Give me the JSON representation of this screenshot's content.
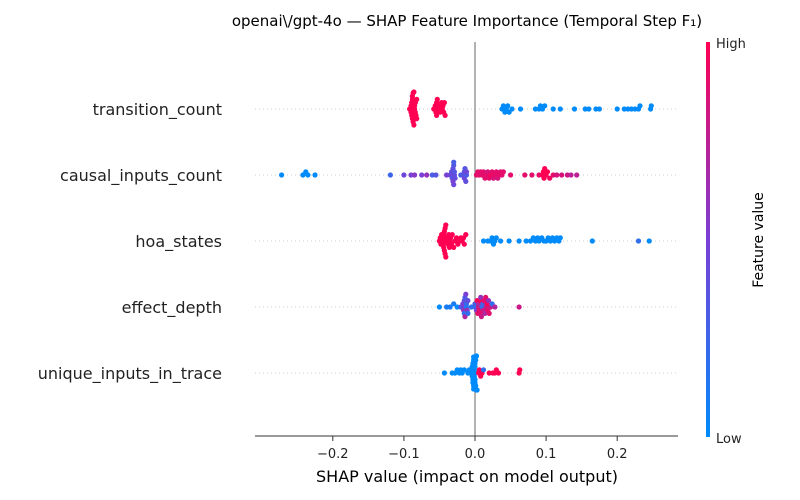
{
  "chart_data": {
    "type": "scatter",
    "subtype": "shap_beeswarm",
    "title": "openai\\/gpt-4o — SHAP Feature Importance (Temporal Step F₁)",
    "xlabel": "SHAP value (impact on model output)",
    "xlim": [
      -0.295,
      0.27
    ],
    "xticks": [
      -0.2,
      -0.1,
      0.0,
      0.1,
      0.2
    ],
    "xtick_labels": [
      "−0.2",
      "−0.1",
      "0.0",
      "0.1",
      "0.2"
    ],
    "colorbar": {
      "title": "Feature value",
      "high_label": "High",
      "low_label": "Low",
      "low_color": "#008bfb",
      "high_color": "#ff0052"
    },
    "features": [
      {
        "name": "transition_count",
        "points": [
          [
            -0.092,
            1
          ],
          [
            -0.091,
            1
          ],
          [
            -0.09,
            1
          ],
          [
            -0.09,
            1
          ],
          [
            -0.089,
            1
          ],
          [
            -0.089,
            1
          ],
          [
            -0.088,
            1
          ],
          [
            -0.088,
            1
          ],
          [
            -0.088,
            1
          ],
          [
            -0.087,
            1
          ],
          [
            -0.087,
            1
          ],
          [
            -0.086,
            1
          ],
          [
            -0.086,
            1
          ],
          [
            -0.085,
            1
          ],
          [
            -0.085,
            1
          ],
          [
            -0.084,
            1
          ],
          [
            -0.084,
            1
          ],
          [
            -0.083,
            1
          ],
          [
            -0.082,
            1
          ],
          [
            -0.082,
            1
          ],
          [
            -0.058,
            1
          ],
          [
            -0.057,
            1
          ],
          [
            -0.056,
            1
          ],
          [
            -0.055,
            1
          ],
          [
            -0.054,
            1
          ],
          [
            -0.054,
            1
          ],
          [
            -0.053,
            1
          ],
          [
            -0.052,
            1
          ],
          [
            -0.051,
            1
          ],
          [
            -0.049,
            1
          ],
          [
            -0.047,
            1
          ],
          [
            -0.046,
            1
          ],
          [
            -0.045,
            1
          ],
          [
            -0.044,
            1
          ],
          [
            -0.043,
            1
          ],
          [
            -0.042,
            1
          ],
          [
            0.038,
            0
          ],
          [
            0.04,
            0
          ],
          [
            0.042,
            0
          ],
          [
            0.044,
            0
          ],
          [
            0.046,
            0
          ],
          [
            0.048,
            0
          ],
          [
            0.052,
            0
          ],
          [
            0.064,
            0
          ],
          [
            0.085,
            0
          ],
          [
            0.09,
            0
          ],
          [
            0.092,
            0
          ],
          [
            0.095,
            0
          ],
          [
            0.098,
            0
          ],
          [
            0.11,
            0
          ],
          [
            0.12,
            0
          ],
          [
            0.14,
            0
          ],
          [
            0.155,
            0
          ],
          [
            0.16,
            0
          ],
          [
            0.17,
            0
          ],
          [
            0.175,
            0
          ],
          [
            0.2,
            0
          ],
          [
            0.21,
            0
          ],
          [
            0.215,
            0
          ],
          [
            0.22,
            0
          ],
          [
            0.225,
            0
          ],
          [
            0.23,
            0
          ],
          [
            0.232,
            0
          ],
          [
            0.247,
            0
          ],
          [
            0.248,
            0
          ]
        ]
      },
      {
        "name": "causal_inputs_count",
        "points": [
          [
            -0.272,
            0
          ],
          [
            -0.242,
            0
          ],
          [
            -0.238,
            0
          ],
          [
            -0.235,
            0
          ],
          [
            -0.225,
            0
          ],
          [
            -0.119,
            0.25
          ],
          [
            -0.1,
            0.45
          ],
          [
            -0.09,
            0.5
          ],
          [
            -0.085,
            0.55
          ],
          [
            -0.075,
            0.5
          ],
          [
            -0.068,
            0.6
          ],
          [
            -0.06,
            0.3
          ],
          [
            -0.055,
            0.35
          ],
          [
            -0.04,
            0.5
          ],
          [
            -0.035,
            0.45
          ],
          [
            -0.033,
            0.4
          ],
          [
            -0.032,
            0.35
          ],
          [
            -0.031,
            0.4
          ],
          [
            -0.03,
            0.35
          ],
          [
            -0.03,
            0.45
          ],
          [
            -0.029,
            0.4
          ],
          [
            -0.029,
            0.35
          ],
          [
            -0.028,
            0.4
          ],
          [
            -0.03,
            0.3
          ],
          [
            -0.031,
            0.5
          ],
          [
            -0.02,
            0.3
          ],
          [
            -0.016,
            0.35
          ],
          [
            -0.015,
            0.4
          ],
          [
            -0.015,
            0.45
          ],
          [
            -0.014,
            0.35
          ],
          [
            -0.013,
            0.4
          ],
          [
            -0.012,
            0.3
          ],
          [
            -0.012,
            0.45
          ],
          [
            0.002,
            0.9
          ],
          [
            0.004,
            0.9
          ],
          [
            0.006,
            0.9
          ],
          [
            0.008,
            0.9
          ],
          [
            0.01,
            0.9
          ],
          [
            0.012,
            0.9
          ],
          [
            0.014,
            0.9
          ],
          [
            0.016,
            0.9
          ],
          [
            0.018,
            0.85
          ],
          [
            0.02,
            0.9
          ],
          [
            0.022,
            0.95
          ],
          [
            0.024,
            0.9
          ],
          [
            0.026,
            0.85
          ],
          [
            0.028,
            0.9
          ],
          [
            0.03,
            0.9
          ],
          [
            0.032,
            0.85
          ],
          [
            0.034,
            0.9
          ],
          [
            0.036,
            0.9
          ],
          [
            0.038,
            0.9
          ],
          [
            0.04,
            0.9
          ],
          [
            0.05,
            0.9
          ],
          [
            0.07,
            0.9
          ],
          [
            0.08,
            0.9
          ],
          [
            0.09,
            0.9
          ],
          [
            0.095,
            1
          ],
          [
            0.096,
            1
          ],
          [
            0.097,
            1
          ],
          [
            0.098,
            1
          ],
          [
            0.1,
            1
          ],
          [
            0.102,
            1
          ],
          [
            0.105,
            0.95
          ],
          [
            0.11,
            0.9
          ],
          [
            0.115,
            0.85
          ],
          [
            0.122,
            0.85
          ],
          [
            0.13,
            0.8
          ],
          [
            0.135,
            0.75
          ],
          [
            0.143,
            0.75
          ]
        ]
      },
      {
        "name": "hoa_states",
        "points": [
          [
            -0.05,
            1
          ],
          [
            -0.049,
            1
          ],
          [
            -0.048,
            1
          ],
          [
            -0.047,
            1
          ],
          [
            -0.046,
            1
          ],
          [
            -0.045,
            1
          ],
          [
            -0.045,
            1
          ],
          [
            -0.044,
            1
          ],
          [
            -0.044,
            1
          ],
          [
            -0.043,
            1
          ],
          [
            -0.043,
            1
          ],
          [
            -0.042,
            1
          ],
          [
            -0.042,
            1
          ],
          [
            -0.041,
            1
          ],
          [
            -0.041,
            1
          ],
          [
            -0.04,
            1
          ],
          [
            -0.039,
            1
          ],
          [
            -0.038,
            1
          ],
          [
            -0.037,
            1
          ],
          [
            -0.036,
            1
          ],
          [
            -0.035,
            1
          ],
          [
            -0.034,
            1
          ],
          [
            -0.033,
            1
          ],
          [
            -0.032,
            1
          ],
          [
            -0.03,
            1
          ],
          [
            -0.028,
            1
          ],
          [
            -0.026,
            1
          ],
          [
            -0.024,
            1
          ],
          [
            -0.022,
            1
          ],
          [
            -0.02,
            1
          ],
          [
            -0.018,
            1
          ],
          [
            -0.016,
            1
          ],
          [
            -0.015,
            1
          ],
          [
            -0.013,
            1
          ],
          [
            0.012,
            0
          ],
          [
            0.018,
            0
          ],
          [
            0.022,
            0
          ],
          [
            0.024,
            0
          ],
          [
            0.026,
            0
          ],
          [
            0.028,
            0
          ],
          [
            0.03,
            0
          ],
          [
            0.036,
            0
          ],
          [
            0.048,
            0
          ],
          [
            0.062,
            0
          ],
          [
            0.072,
            0
          ],
          [
            0.078,
            0
          ],
          [
            0.082,
            0
          ],
          [
            0.085,
            0
          ],
          [
            0.088,
            0
          ],
          [
            0.09,
            0
          ],
          [
            0.094,
            0
          ],
          [
            0.097,
            0
          ],
          [
            0.1,
            0
          ],
          [
            0.103,
            0
          ],
          [
            0.106,
            0
          ],
          [
            0.109,
            0
          ],
          [
            0.112,
            0
          ],
          [
            0.115,
            0
          ],
          [
            0.118,
            0
          ],
          [
            0.12,
            0
          ],
          [
            0.165,
            0
          ],
          [
            0.23,
            0.2
          ],
          [
            0.245,
            0
          ]
        ]
      },
      {
        "name": "effect_depth",
        "points": [
          [
            -0.05,
            0
          ],
          [
            -0.04,
            0.1
          ],
          [
            -0.035,
            0.1
          ],
          [
            -0.03,
            0.1
          ],
          [
            -0.025,
            0
          ],
          [
            -0.02,
            0.3
          ],
          [
            -0.018,
            0.4
          ],
          [
            -0.017,
            0.5
          ],
          [
            -0.016,
            0.6
          ],
          [
            -0.015,
            0.4
          ],
          [
            -0.015,
            0.2
          ],
          [
            -0.014,
            0.3
          ],
          [
            -0.014,
            0.7
          ],
          [
            -0.013,
            0.5
          ],
          [
            -0.012,
            0.1
          ],
          [
            -0.012,
            0.2
          ],
          [
            -0.011,
            0.6
          ],
          [
            -0.01,
            0.4
          ],
          [
            -0.01,
            0.2
          ],
          [
            -0.005,
            0.2
          ],
          [
            0,
            0.2
          ],
          [
            0,
            0.3
          ],
          [
            0.002,
            0.5
          ],
          [
            0.003,
            1
          ],
          [
            0.004,
            0.9
          ],
          [
            0.005,
            0.8
          ],
          [
            0.005,
            0.7
          ],
          [
            0.006,
            0.9
          ],
          [
            0.007,
            1
          ],
          [
            0.008,
            0.9
          ],
          [
            0.008,
            0.6
          ],
          [
            0.009,
            0.8
          ],
          [
            0.01,
            0.2
          ],
          [
            0.011,
            0.3
          ],
          [
            0.012,
            0.8
          ],
          [
            0.013,
            0.9
          ],
          [
            0.014,
            0.7
          ],
          [
            0.015,
            0.9
          ],
          [
            0.016,
            0.8
          ],
          [
            0.017,
            1
          ],
          [
            0.018,
            0.9
          ],
          [
            0.019,
            0.6
          ],
          [
            0.02,
            0.9
          ],
          [
            0.022,
            0.8
          ],
          [
            0.024,
            0.2
          ],
          [
            0.028,
            0.7
          ],
          [
            0.062,
            0.8
          ]
        ]
      },
      {
        "name": "unique_inputs_in_trace",
        "points": [
          [
            -0.043,
            0
          ],
          [
            -0.032,
            0
          ],
          [
            -0.028,
            0
          ],
          [
            -0.025,
            0
          ],
          [
            -0.022,
            0
          ],
          [
            -0.02,
            0
          ],
          [
            -0.018,
            0
          ],
          [
            -0.015,
            0
          ],
          [
            -0.01,
            0
          ],
          [
            -0.008,
            0
          ],
          [
            -0.006,
            0
          ],
          [
            -0.005,
            0
          ],
          [
            -0.004,
            0
          ],
          [
            -0.003,
            0
          ],
          [
            -0.002,
            0
          ],
          [
            -0.002,
            0
          ],
          [
            -0.001,
            0
          ],
          [
            -0.001,
            0
          ],
          [
            0,
            0
          ],
          [
            0,
            0
          ],
          [
            0.001,
            0
          ],
          [
            0.001,
            0
          ],
          [
            0.002,
            0
          ],
          [
            0.002,
            0
          ],
          [
            0.003,
            0
          ],
          [
            -0.004,
            0
          ],
          [
            -0.003,
            0
          ],
          [
            -0.002,
            0
          ],
          [
            -0.001,
            0
          ],
          [
            0,
            0
          ],
          [
            0.001,
            0
          ],
          [
            0.002,
            0
          ],
          [
            -0.003,
            0
          ],
          [
            -0.002,
            0
          ],
          [
            0,
            0
          ],
          [
            0.001,
            0
          ],
          [
            0.005,
            1
          ],
          [
            0.006,
            1
          ],
          [
            0.008,
            1
          ],
          [
            0.01,
            1
          ],
          [
            0.012,
            0.2
          ],
          [
            0.02,
            1
          ],
          [
            0.025,
            1
          ],
          [
            0.028,
            1
          ],
          [
            0.03,
            1
          ],
          [
            0.033,
            1
          ],
          [
            0.062,
            1
          ],
          [
            0.063,
            1
          ]
        ]
      }
    ]
  }
}
